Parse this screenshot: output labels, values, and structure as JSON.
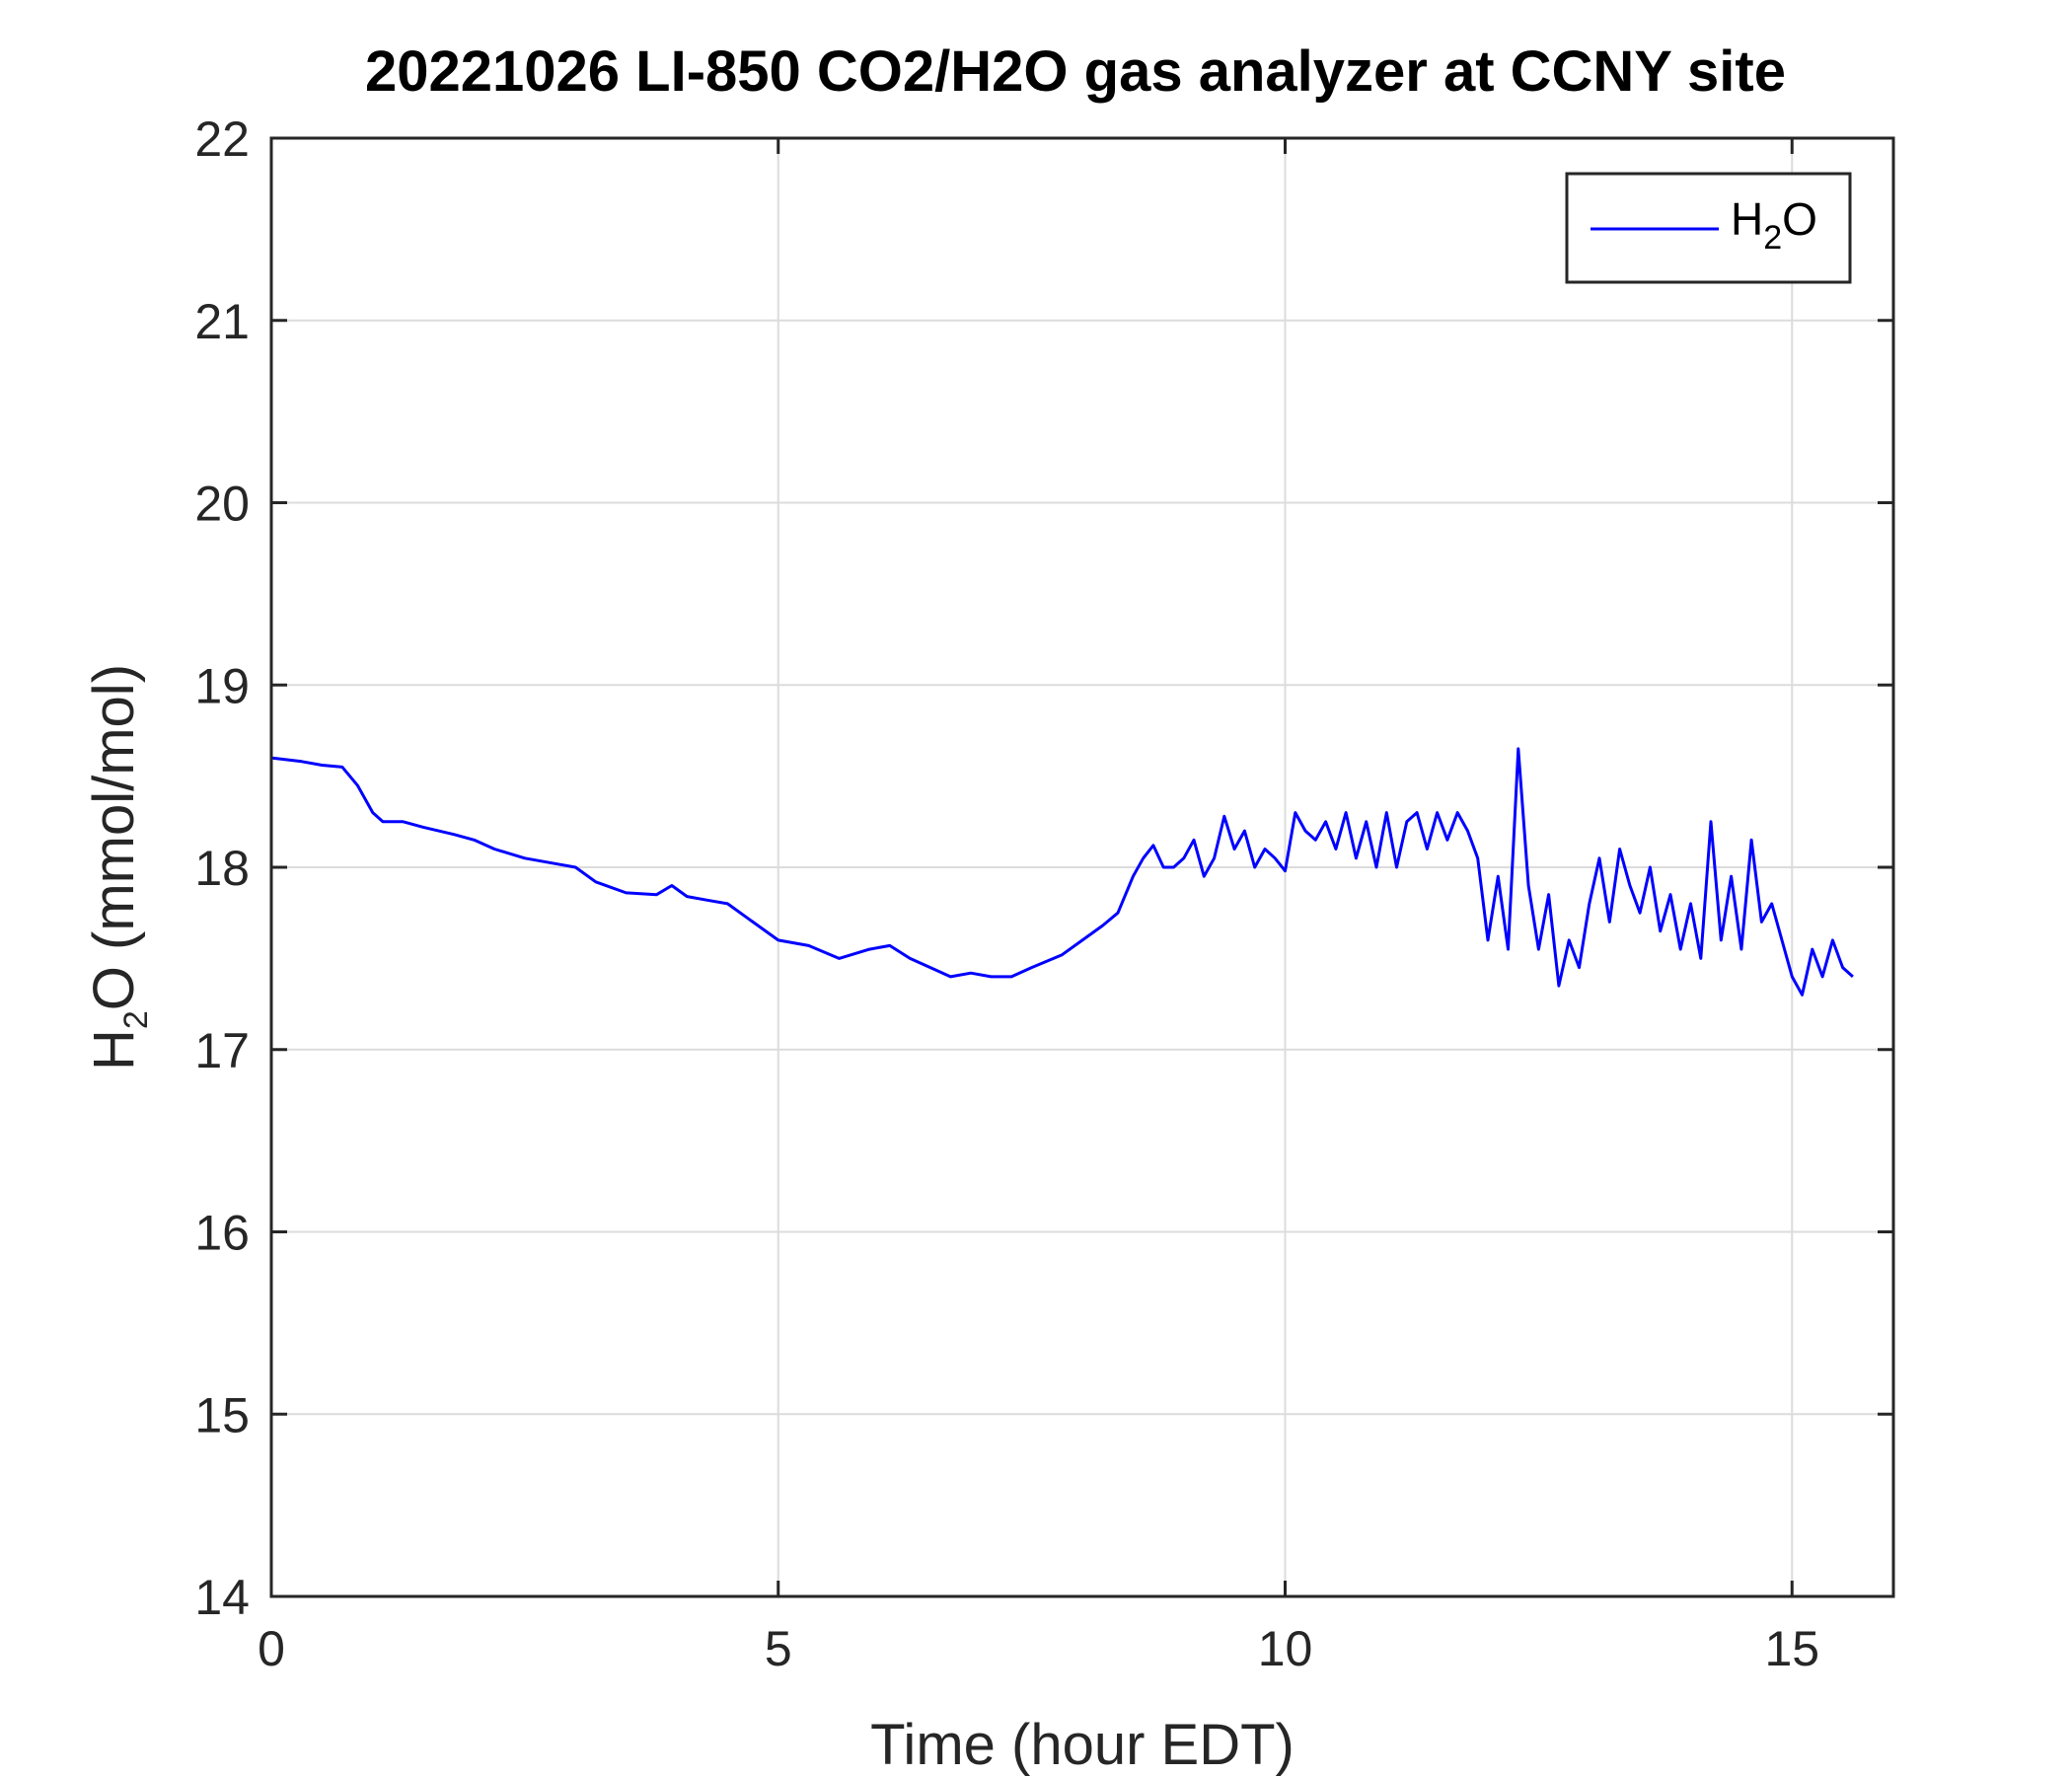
{
  "chart_data": {
    "type": "line",
    "title": "20221026 LI-850 CO2/H2O gas analyzer at CCNY site",
    "xlabel": "Time (hour EDT)",
    "ylabel": {
      "main": "H",
      "sub": "2",
      "rest": "O (mmol/mol)"
    },
    "xlim": [
      0,
      16
    ],
    "ylim": [
      14,
      22
    ],
    "xticks": [
      0,
      5,
      10,
      15
    ],
    "yticks": [
      14,
      15,
      16,
      17,
      18,
      19,
      20,
      21,
      22
    ],
    "xtick_labels": [
      "0",
      "5",
      "10",
      "15"
    ],
    "ytick_labels": [
      "14",
      "15",
      "16",
      "17",
      "18",
      "19",
      "20",
      "21",
      "22"
    ],
    "grid": true,
    "legend_position": "top-right",
    "legend": {
      "main": "H",
      "sub": "2",
      "rest": "O"
    },
    "series": [
      {
        "name": "H2O",
        "color": "#0000ff",
        "x": [
          0,
          0.3,
          0.5,
          0.7,
          0.85,
          1.0,
          1.1,
          1.3,
          1.5,
          1.8,
          2.0,
          2.2,
          2.5,
          2.8,
          3.0,
          3.2,
          3.5,
          3.8,
          3.95,
          4.1,
          4.3,
          4.5,
          4.7,
          5.0,
          5.3,
          5.6,
          5.9,
          6.1,
          6.3,
          6.5,
          6.7,
          6.9,
          7.1,
          7.3,
          7.5,
          7.8,
          8.0,
          8.2,
          8.35,
          8.5,
          8.6,
          8.7,
          8.8,
          8.9,
          9.0,
          9.1,
          9.2,
          9.3,
          9.4,
          9.5,
          9.6,
          9.7,
          9.8,
          9.9,
          10.0,
          10.1,
          10.2,
          10.3,
          10.4,
          10.5,
          10.6,
          10.7,
          10.8,
          10.9,
          11.0,
          11.1,
          11.2,
          11.3,
          11.4,
          11.5,
          11.6,
          11.7,
          11.8,
          11.9,
          12.0,
          12.1,
          12.2,
          12.3,
          12.4,
          12.5,
          12.6,
          12.7,
          12.8,
          12.9,
          13.0,
          13.1,
          13.2,
          13.3,
          13.4,
          13.5,
          13.6,
          13.7,
          13.8,
          13.9,
          14.0,
          14.1,
          14.2,
          14.3,
          14.4,
          14.5,
          14.6,
          14.7,
          14.8,
          14.9,
          15.0,
          15.1,
          15.2,
          15.3,
          15.4,
          15.5,
          15.6
        ],
        "y": [
          18.6,
          18.58,
          18.56,
          18.55,
          18.45,
          18.3,
          18.25,
          18.25,
          18.22,
          18.18,
          18.15,
          18.1,
          18.05,
          18.02,
          18.0,
          17.92,
          17.86,
          17.85,
          17.9,
          17.84,
          17.82,
          17.8,
          17.72,
          17.6,
          17.57,
          17.5,
          17.55,
          17.57,
          17.5,
          17.45,
          17.4,
          17.42,
          17.4,
          17.4,
          17.45,
          17.52,
          17.6,
          17.68,
          17.75,
          17.95,
          18.05,
          18.12,
          18.0,
          18.0,
          18.05,
          18.15,
          17.95,
          18.05,
          18.28,
          18.1,
          18.2,
          18.0,
          18.1,
          18.05,
          17.98,
          18.3,
          18.2,
          18.15,
          18.25,
          18.1,
          18.3,
          18.05,
          18.25,
          18.0,
          18.3,
          18.0,
          18.25,
          18.3,
          18.1,
          18.3,
          18.15,
          18.3,
          18.2,
          18.05,
          17.6,
          17.95,
          17.55,
          18.65,
          17.9,
          17.55,
          17.85,
          17.35,
          17.6,
          17.45,
          17.8,
          18.05,
          17.7,
          18.1,
          17.9,
          17.75,
          18.0,
          17.65,
          17.85,
          17.55,
          17.8,
          17.5,
          18.25,
          17.6,
          17.95,
          17.55,
          18.15,
          17.7,
          17.8,
          17.6,
          17.4,
          17.3,
          17.55,
          17.4,
          17.6,
          17.45,
          17.4
        ]
      }
    ]
  }
}
